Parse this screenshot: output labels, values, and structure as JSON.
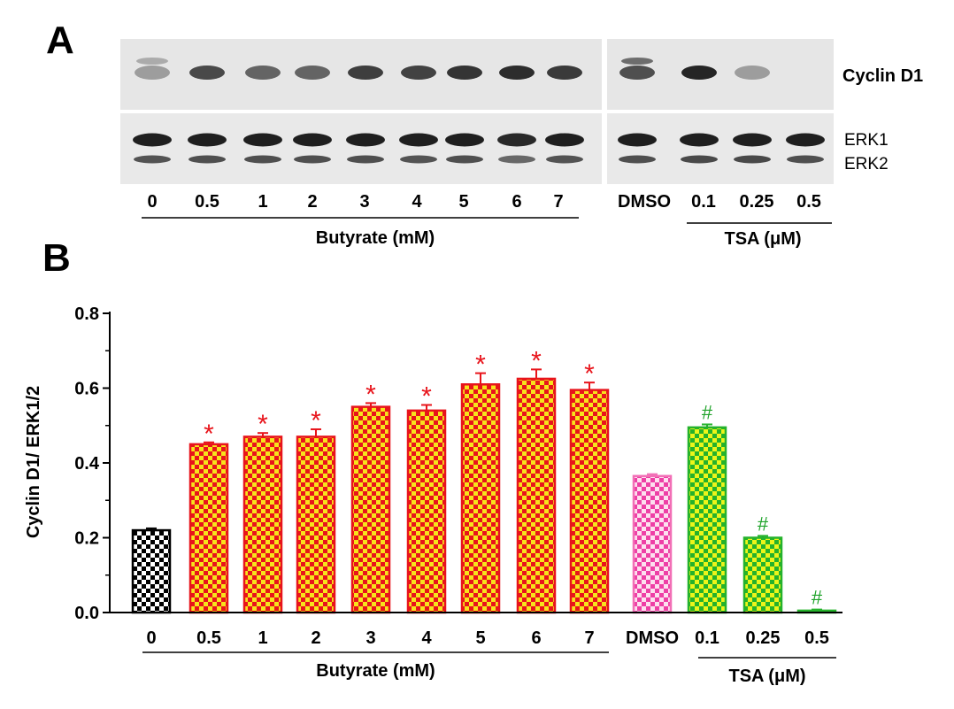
{
  "panel_a": {
    "label": "A",
    "bands": {
      "top": "Cyclin D1",
      "bottom_1": "ERK1",
      "bottom_2": "ERK2"
    },
    "lanes": [
      "0",
      "0.5",
      "1",
      "2",
      "3",
      "4",
      "5",
      "6",
      "7",
      "DMSO",
      "0.1",
      "0.25",
      "0.5"
    ],
    "group_labels": {
      "butyrate": "Butyrate (mM)",
      "tsa": "TSA (μM)"
    },
    "cyclin_intensity": [
      0.35,
      0.75,
      0.62,
      0.62,
      0.8,
      0.78,
      0.85,
      0.88,
      0.82,
      0.72,
      0.92,
      0.35,
      0.0
    ],
    "erk1_intensity": [
      0.95,
      0.95,
      0.95,
      0.95,
      0.95,
      0.95,
      0.95,
      0.9,
      0.95,
      0.95,
      0.95,
      0.95,
      0.95
    ],
    "erk2_intensity": [
      0.7,
      0.72,
      0.72,
      0.72,
      0.72,
      0.7,
      0.72,
      0.6,
      0.7,
      0.72,
      0.75,
      0.75,
      0.72
    ]
  },
  "panel_b": {
    "label": "B"
  },
  "chart_data": {
    "type": "bar",
    "categories": [
      "0",
      "0.5",
      "1",
      "2",
      "3",
      "4",
      "5",
      "6",
      "7",
      "DMSO",
      "0.1",
      "0.25",
      "0.5"
    ],
    "values": [
      0.22,
      0.45,
      0.47,
      0.47,
      0.55,
      0.54,
      0.61,
      0.625,
      0.595,
      0.365,
      0.495,
      0.2,
      0.005
    ],
    "errors": [
      0.005,
      0.005,
      0.01,
      0.02,
      0.01,
      0.015,
      0.03,
      0.025,
      0.02,
      0.005,
      0.008,
      0.005,
      0.003
    ],
    "annotations": [
      "",
      "*",
      "*",
      "*",
      "*",
      "*",
      "*",
      "*",
      "*",
      "",
      "#",
      "#",
      "#"
    ],
    "annotation_colors": {
      "*": "#e8141b",
      "#": "#1fa32a"
    },
    "groups": [
      {
        "label": "Butyrate (mM)",
        "from": 0,
        "to": 8
      },
      {
        "label": "TSA (μM)",
        "from": 10,
        "to": 12
      }
    ],
    "bar_styles": [
      "control",
      "butyrate",
      "butyrate",
      "butyrate",
      "butyrate",
      "butyrate",
      "butyrate",
      "butyrate",
      "butyrate",
      "dmso",
      "tsa",
      "tsa",
      "tsa"
    ],
    "style_colors": {
      "control": {
        "stroke": "#000000",
        "a": "#ffffff",
        "b": "#000000"
      },
      "butyrate": {
        "stroke": "#e8141b",
        "a": "#e8141b",
        "b": "#f7e31c"
      },
      "dmso": {
        "stroke": "#f26fb6",
        "a": "#ee3fa6",
        "b": "#fde0ef"
      },
      "tsa": {
        "stroke": "#25b22b",
        "a": "#25b22b",
        "b": "#ecf51a"
      }
    },
    "ylabel": "Cyclin D1/ ERK1/2",
    "xlabel": "",
    "ylim": [
      0,
      0.8
    ],
    "yticks": [
      "0.0",
      "0.2",
      "0.4",
      "0.6",
      "0.8"
    ],
    "ytick_values": [
      0.0,
      0.2,
      0.4,
      0.6,
      0.8
    ],
    "grid": false,
    "legend": "none"
  }
}
